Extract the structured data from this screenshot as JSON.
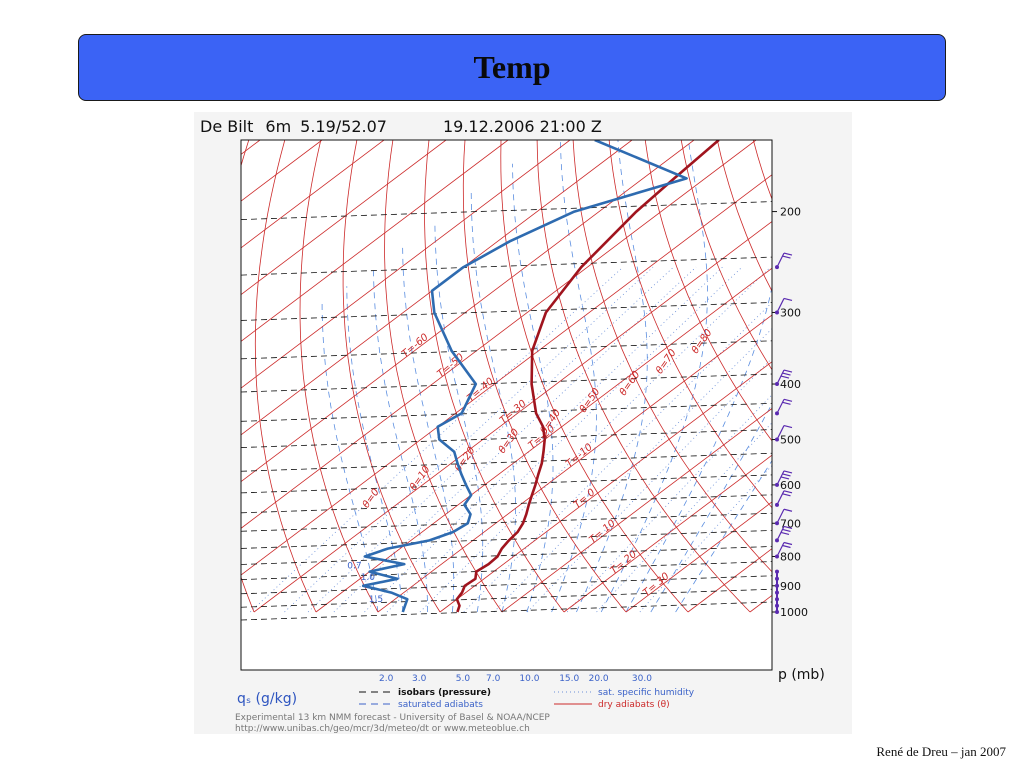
{
  "slide": {
    "title": "Temp",
    "footer": "René de Dreu – jan 2007"
  },
  "colors": {
    "title_bar": "#3b63f5",
    "temperature": "#a0141e",
    "dewpoint": "#2e6bb0",
    "dry_adiabat": "#cc2a2a",
    "saturated_adiabat": "#5b8ee0",
    "isobar": "#111111",
    "wind_barb": "#5a2ab0"
  },
  "chart_data": {
    "type": "skew-T log-p diagram",
    "header": {
      "station": "De Bilt",
      "elevation": "6m",
      "coords": "5.19/52.07",
      "datetime": "19.12.2006 21:00 Z"
    },
    "pressure_axis": {
      "label": "p (mb)",
      "ticks": [
        "200",
        "300",
        "400",
        "500",
        "600",
        "700",
        "800",
        "900",
        "1000"
      ],
      "ylim": [
        1000,
        150
      ],
      "scale": "log"
    },
    "specific_humidity_axis": {
      "label": "qₛ (g/kg)",
      "ticks": [
        "2.0",
        "3.0",
        "5.0",
        "7.0",
        "10.0",
        "15.0",
        "20.0",
        "30.0"
      ]
    },
    "isotherm_labels": [
      "T=-60",
      "T=-50",
      "T=-40",
      "T=-30",
      "T=-20",
      "T=-10",
      "T= 0",
      "T= 10",
      "T= 20",
      "T= 30"
    ],
    "theta_labels": [
      "θ=80",
      "θ=70",
      "θ=60",
      "θ=50",
      "θ=40",
      "θ=30",
      "θ=20",
      "θ=10",
      "θ=0"
    ],
    "qs_curve_labels": [
      "0.7",
      "1.0",
      "1.5"
    ],
    "series": [
      {
        "name": "temperature",
        "points": [
          [
            1000,
            2.8
          ],
          [
            975,
            1.8
          ],
          [
            950,
            0
          ],
          [
            925,
            -0.6
          ],
          [
            900,
            -1.6
          ],
          [
            875,
            -1.4
          ],
          [
            850,
            -2.8
          ],
          [
            825,
            -2.4
          ],
          [
            800,
            -2.6
          ],
          [
            775,
            -3.6
          ],
          [
            750,
            -4.2
          ],
          [
            725,
            -4.6
          ],
          [
            700,
            -5.6
          ],
          [
            675,
            -7
          ],
          [
            650,
            -8.6
          ],
          [
            625,
            -10.2
          ],
          [
            600,
            -11.8
          ],
          [
            575,
            -13.6
          ],
          [
            550,
            -15.4
          ],
          [
            525,
            -17.6
          ],
          [
            500,
            -20
          ],
          [
            475,
            -23
          ],
          [
            450,
            -27
          ],
          [
            400,
            -34
          ],
          [
            350,
            -41
          ],
          [
            300,
            -47
          ],
          [
            250,
            -51
          ],
          [
            200,
            -54
          ],
          [
            175,
            -55
          ],
          [
            150,
            -56
          ]
        ]
      },
      {
        "name": "dewpoint",
        "points": [
          [
            1000,
            -6
          ],
          [
            975,
            -7
          ],
          [
            950,
            -8
          ],
          [
            925,
            -12
          ],
          [
            900,
            -18
          ],
          [
            875,
            -14
          ],
          [
            850,
            -20
          ],
          [
            825,
            -16
          ],
          [
            800,
            -24
          ],
          [
            775,
            -22
          ],
          [
            750,
            -17
          ],
          [
            725,
            -15
          ],
          [
            700,
            -14.5
          ],
          [
            675,
            -16
          ],
          [
            650,
            -19
          ],
          [
            625,
            -20
          ],
          [
            600,
            -23
          ],
          [
            575,
            -26
          ],
          [
            550,
            -29
          ],
          [
            525,
            -32
          ],
          [
            500,
            -37
          ],
          [
            475,
            -40
          ],
          [
            450,
            -39
          ],
          [
            400,
            -43
          ],
          [
            350,
            -54
          ],
          [
            300,
            -65
          ],
          [
            275,
            -70
          ],
          [
            250,
            -70
          ],
          [
            225,
            -68
          ],
          [
            200,
            -64
          ],
          [
            175,
            -53
          ],
          [
            150,
            -76
          ]
        ]
      }
    ],
    "wind_barbs_at": [
      1000,
      975,
      950,
      925,
      900,
      875,
      850,
      800,
      750,
      700,
      650,
      600,
      500,
      450,
      400,
      300,
      250
    ],
    "legend": [
      {
        "style": "black-dashed",
        "label": "isobars (pressure)"
      },
      {
        "style": "blue-dashed",
        "label": "saturated adiabats"
      },
      {
        "style": "blue-dotted",
        "label": "sat. specific humidity"
      },
      {
        "style": "red-solid",
        "label": "dry adiabats (θ)"
      }
    ],
    "credits": [
      "Experimental 13 km NMM forecast - University of Basel & NOAA/NCEP",
      "http://www.unibas.ch/geo/mcr/3d/meteo/dt   or   www.meteoblue.ch"
    ]
  }
}
